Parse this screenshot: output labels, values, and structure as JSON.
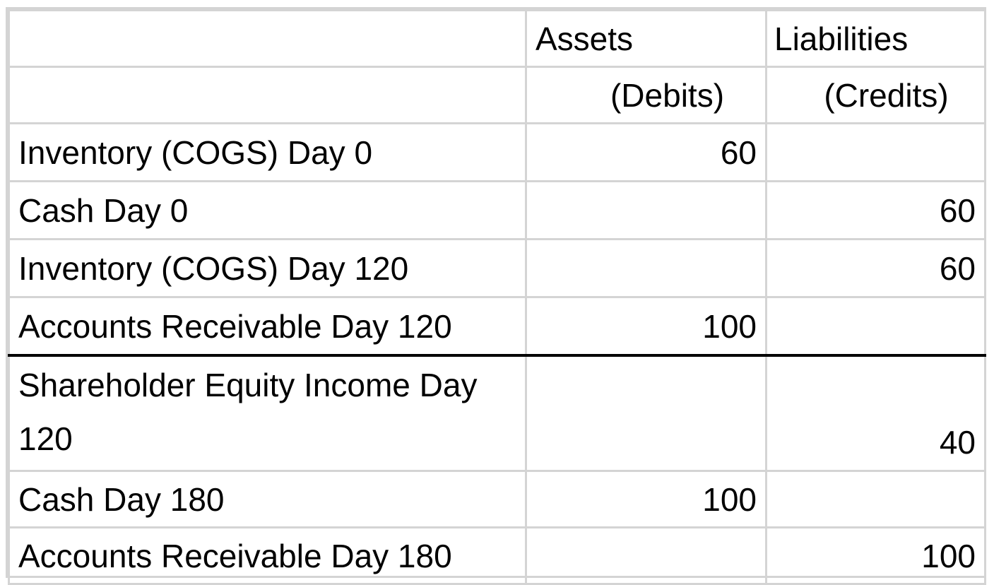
{
  "header": {
    "row1": {
      "label": "",
      "debit": "Assets",
      "credit": "Liabilities"
    },
    "row2": {
      "label": "",
      "debit": "(Debits)",
      "credit": "(Credits)"
    }
  },
  "entries": [
    {
      "label": "Inventory (COGS) Day 0",
      "debit": "60",
      "credit": ""
    },
    {
      "label": "Cash Day 0",
      "debit": "",
      "credit": "60"
    },
    {
      "label": "Inventory (COGS) Day 120",
      "debit": "",
      "credit": "60"
    },
    {
      "label": "Accounts Receivable Day 120",
      "debit": "100",
      "credit": ""
    },
    {
      "label": "Shareholder Equity Income Day 120",
      "debit": "",
      "credit": "40"
    },
    {
      "label": "Cash Day 180",
      "debit": "100",
      "credit": ""
    },
    {
      "label": "Accounts Receivable Day 180",
      "debit": "",
      "credit": "100"
    }
  ],
  "colors": {
    "gridline": "#d4d4d4",
    "rule": "#000000",
    "text": "#000000",
    "background": "#ffffff"
  }
}
